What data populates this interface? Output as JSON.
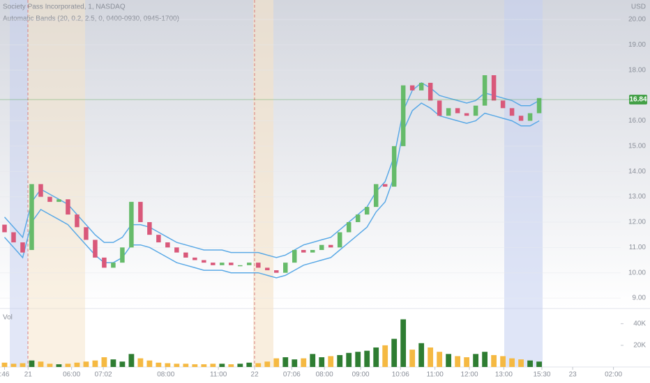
{
  "chart_data": {
    "type": "candlestick",
    "title": "Society Pass Incorporated, 1, NASDAQ",
    "subtitle": "Automatic Bands (20, 0.2, 2.5, 0, 0400-0930, 0945-1700)",
    "currency": "USD",
    "volume_label": "Vol",
    "xlim": [
      -0.5,
      68
    ],
    "xticks": [
      {
        "value": 0,
        "label": ":46"
      },
      {
        "value": 2.6,
        "label": "21"
      },
      {
        "value": 7.4,
        "label": "06:00"
      },
      {
        "value": 10.9,
        "label": "07:02"
      },
      {
        "value": 17.8,
        "label": "08:00"
      },
      {
        "value": 23.6,
        "label": "11:00"
      },
      {
        "value": 27.6,
        "label": "22"
      },
      {
        "value": 31.7,
        "label": "07:06"
      },
      {
        "value": 35.3,
        "label": "08:00"
      },
      {
        "value": 39.3,
        "label": "09:00"
      },
      {
        "value": 43.7,
        "label": "10:06"
      },
      {
        "value": 47.5,
        "label": "11:00"
      },
      {
        "value": 51.3,
        "label": "12:00"
      },
      {
        "value": 55.1,
        "label": "13:00"
      },
      {
        "value": 59.3,
        "label": "15:30"
      },
      {
        "value": 62.7,
        "label": "23"
      },
      {
        "value": 67.2,
        "label": "02:00"
      }
    ],
    "ylim": [
      8.59,
      20.77
    ],
    "yticks": [
      {
        "value": 9,
        "label": "9.00"
      },
      {
        "value": 10,
        "label": "10.00"
      },
      {
        "value": 11,
        "label": "11.00"
      },
      {
        "value": 12,
        "label": "12.00"
      },
      {
        "value": 13,
        "label": "13.00"
      },
      {
        "value": 14,
        "label": "14.00"
      },
      {
        "value": 15,
        "label": "15.00"
      },
      {
        "value": 16,
        "label": "16.00"
      },
      {
        "value": 18,
        "label": "18.00"
      },
      {
        "value": 19,
        "label": "19.00"
      },
      {
        "value": 20,
        "label": "20.00"
      }
    ],
    "vlim": [
      0,
      54000
    ],
    "vticks": [
      {
        "value": 20000,
        "label": "20K"
      },
      {
        "value": 40000,
        "label": "40K"
      }
    ],
    "current_price": {
      "value": 16.84,
      "label": "16.84"
    },
    "up_color": "#66bb6a",
    "down_color": "#d9587a",
    "band_color": "#5aa9e6",
    "volume_up_color": "#2e7d32",
    "volume_down_color": "#f5b942",
    "price_line_color": "#43a047",
    "open": [
      11.9,
      11.6,
      11.2,
      10.9,
      13.5,
      13.0,
      12.8,
      12.9,
      12.3,
      11.8,
      11.3,
      10.6,
      10.2,
      10.4,
      11.0,
      12.8,
      12.0,
      11.5,
      11.2,
      11.0,
      10.8,
      10.6,
      10.5,
      10.4,
      10.3,
      10.4,
      10.3,
      10.3,
      10.4,
      10.2,
      10.1,
      10.0,
      10.4,
      10.9,
      10.8,
      10.9,
      11.1,
      11.0,
      11.6,
      12.0,
      12.3,
      12.6,
      13.5,
      13.4,
      15.0,
      17.4,
      17.2,
      17.5,
      16.8,
      16.2,
      16.5,
      16.3,
      16.2,
      16.6,
      17.8,
      16.8,
      16.5,
      16.2,
      16.0,
      16.3
    ],
    "close": [
      11.6,
      11.2,
      10.8,
      13.5,
      13.0,
      12.8,
      12.9,
      12.3,
      11.8,
      11.3,
      10.6,
      10.2,
      10.4,
      11.0,
      12.8,
      12.0,
      11.5,
      11.2,
      11.0,
      10.8,
      10.6,
      10.5,
      10.4,
      10.3,
      10.4,
      10.3,
      10.3,
      10.4,
      10.2,
      10.1,
      10.0,
      10.4,
      10.9,
      10.8,
      10.9,
      11.1,
      11.0,
      11.6,
      12.0,
      12.3,
      12.6,
      13.5,
      13.4,
      15.0,
      17.4,
      17.2,
      17.5,
      16.8,
      16.2,
      16.5,
      16.3,
      16.2,
      16.6,
      17.8,
      16.8,
      16.5,
      16.2,
      16.0,
      16.3,
      16.9
    ],
    "upper": [
      12.2,
      11.8,
      11.4,
      12.8,
      13.3,
      13.1,
      12.9,
      12.7,
      12.3,
      11.9,
      11.5,
      11.2,
      11.2,
      11.4,
      11.9,
      11.9,
      11.8,
      11.6,
      11.4,
      11.2,
      11.1,
      11.0,
      10.9,
      10.9,
      10.9,
      10.8,
      10.8,
      10.8,
      10.8,
      10.7,
      10.6,
      10.7,
      10.9,
      11.1,
      11.2,
      11.3,
      11.4,
      11.7,
      12.0,
      12.3,
      12.6,
      13.2,
      13.6,
      14.6,
      16.4,
      17.2,
      17.5,
      17.3,
      17.0,
      16.9,
      16.8,
      16.7,
      16.8,
      17.1,
      17.0,
      16.9,
      16.8,
      16.6,
      16.6,
      16.8
    ],
    "lower": [
      11.4,
      11.0,
      10.6,
      12.0,
      12.5,
      12.3,
      12.1,
      11.9,
      11.5,
      11.1,
      10.7,
      10.4,
      10.4,
      10.6,
      11.1,
      11.1,
      11.0,
      10.8,
      10.6,
      10.4,
      10.3,
      10.2,
      10.1,
      10.1,
      10.1,
      10.0,
      10.0,
      10.0,
      10.0,
      9.9,
      9.8,
      9.9,
      10.1,
      10.3,
      10.4,
      10.5,
      10.6,
      10.9,
      11.2,
      11.5,
      11.8,
      12.4,
      12.8,
      13.8,
      15.6,
      16.4,
      16.7,
      16.5,
      16.2,
      16.1,
      16.0,
      15.9,
      16.0,
      16.3,
      16.2,
      16.1,
      16.0,
      15.8,
      15.8,
      16.0
    ],
    "volume": [
      4000,
      3000,
      3500,
      6000,
      5000,
      3000,
      2500,
      3000,
      4000,
      5000,
      6000,
      9000,
      7000,
      5000,
      12000,
      8000,
      6000,
      4000,
      3500,
      3000,
      3000,
      2500,
      2500,
      3000,
      3000,
      2500,
      3000,
      4000,
      3500,
      5000,
      8000,
      9000,
      7000,
      8000,
      12000,
      9000,
      10000,
      11000,
      13000,
      14000,
      15000,
      18000,
      20000,
      26000,
      44000,
      16000,
      22000,
      18000,
      14000,
      12000,
      10000,
      9000,
      12000,
      14000,
      11000,
      10000,
      8000,
      7000,
      6000,
      5000
    ]
  }
}
